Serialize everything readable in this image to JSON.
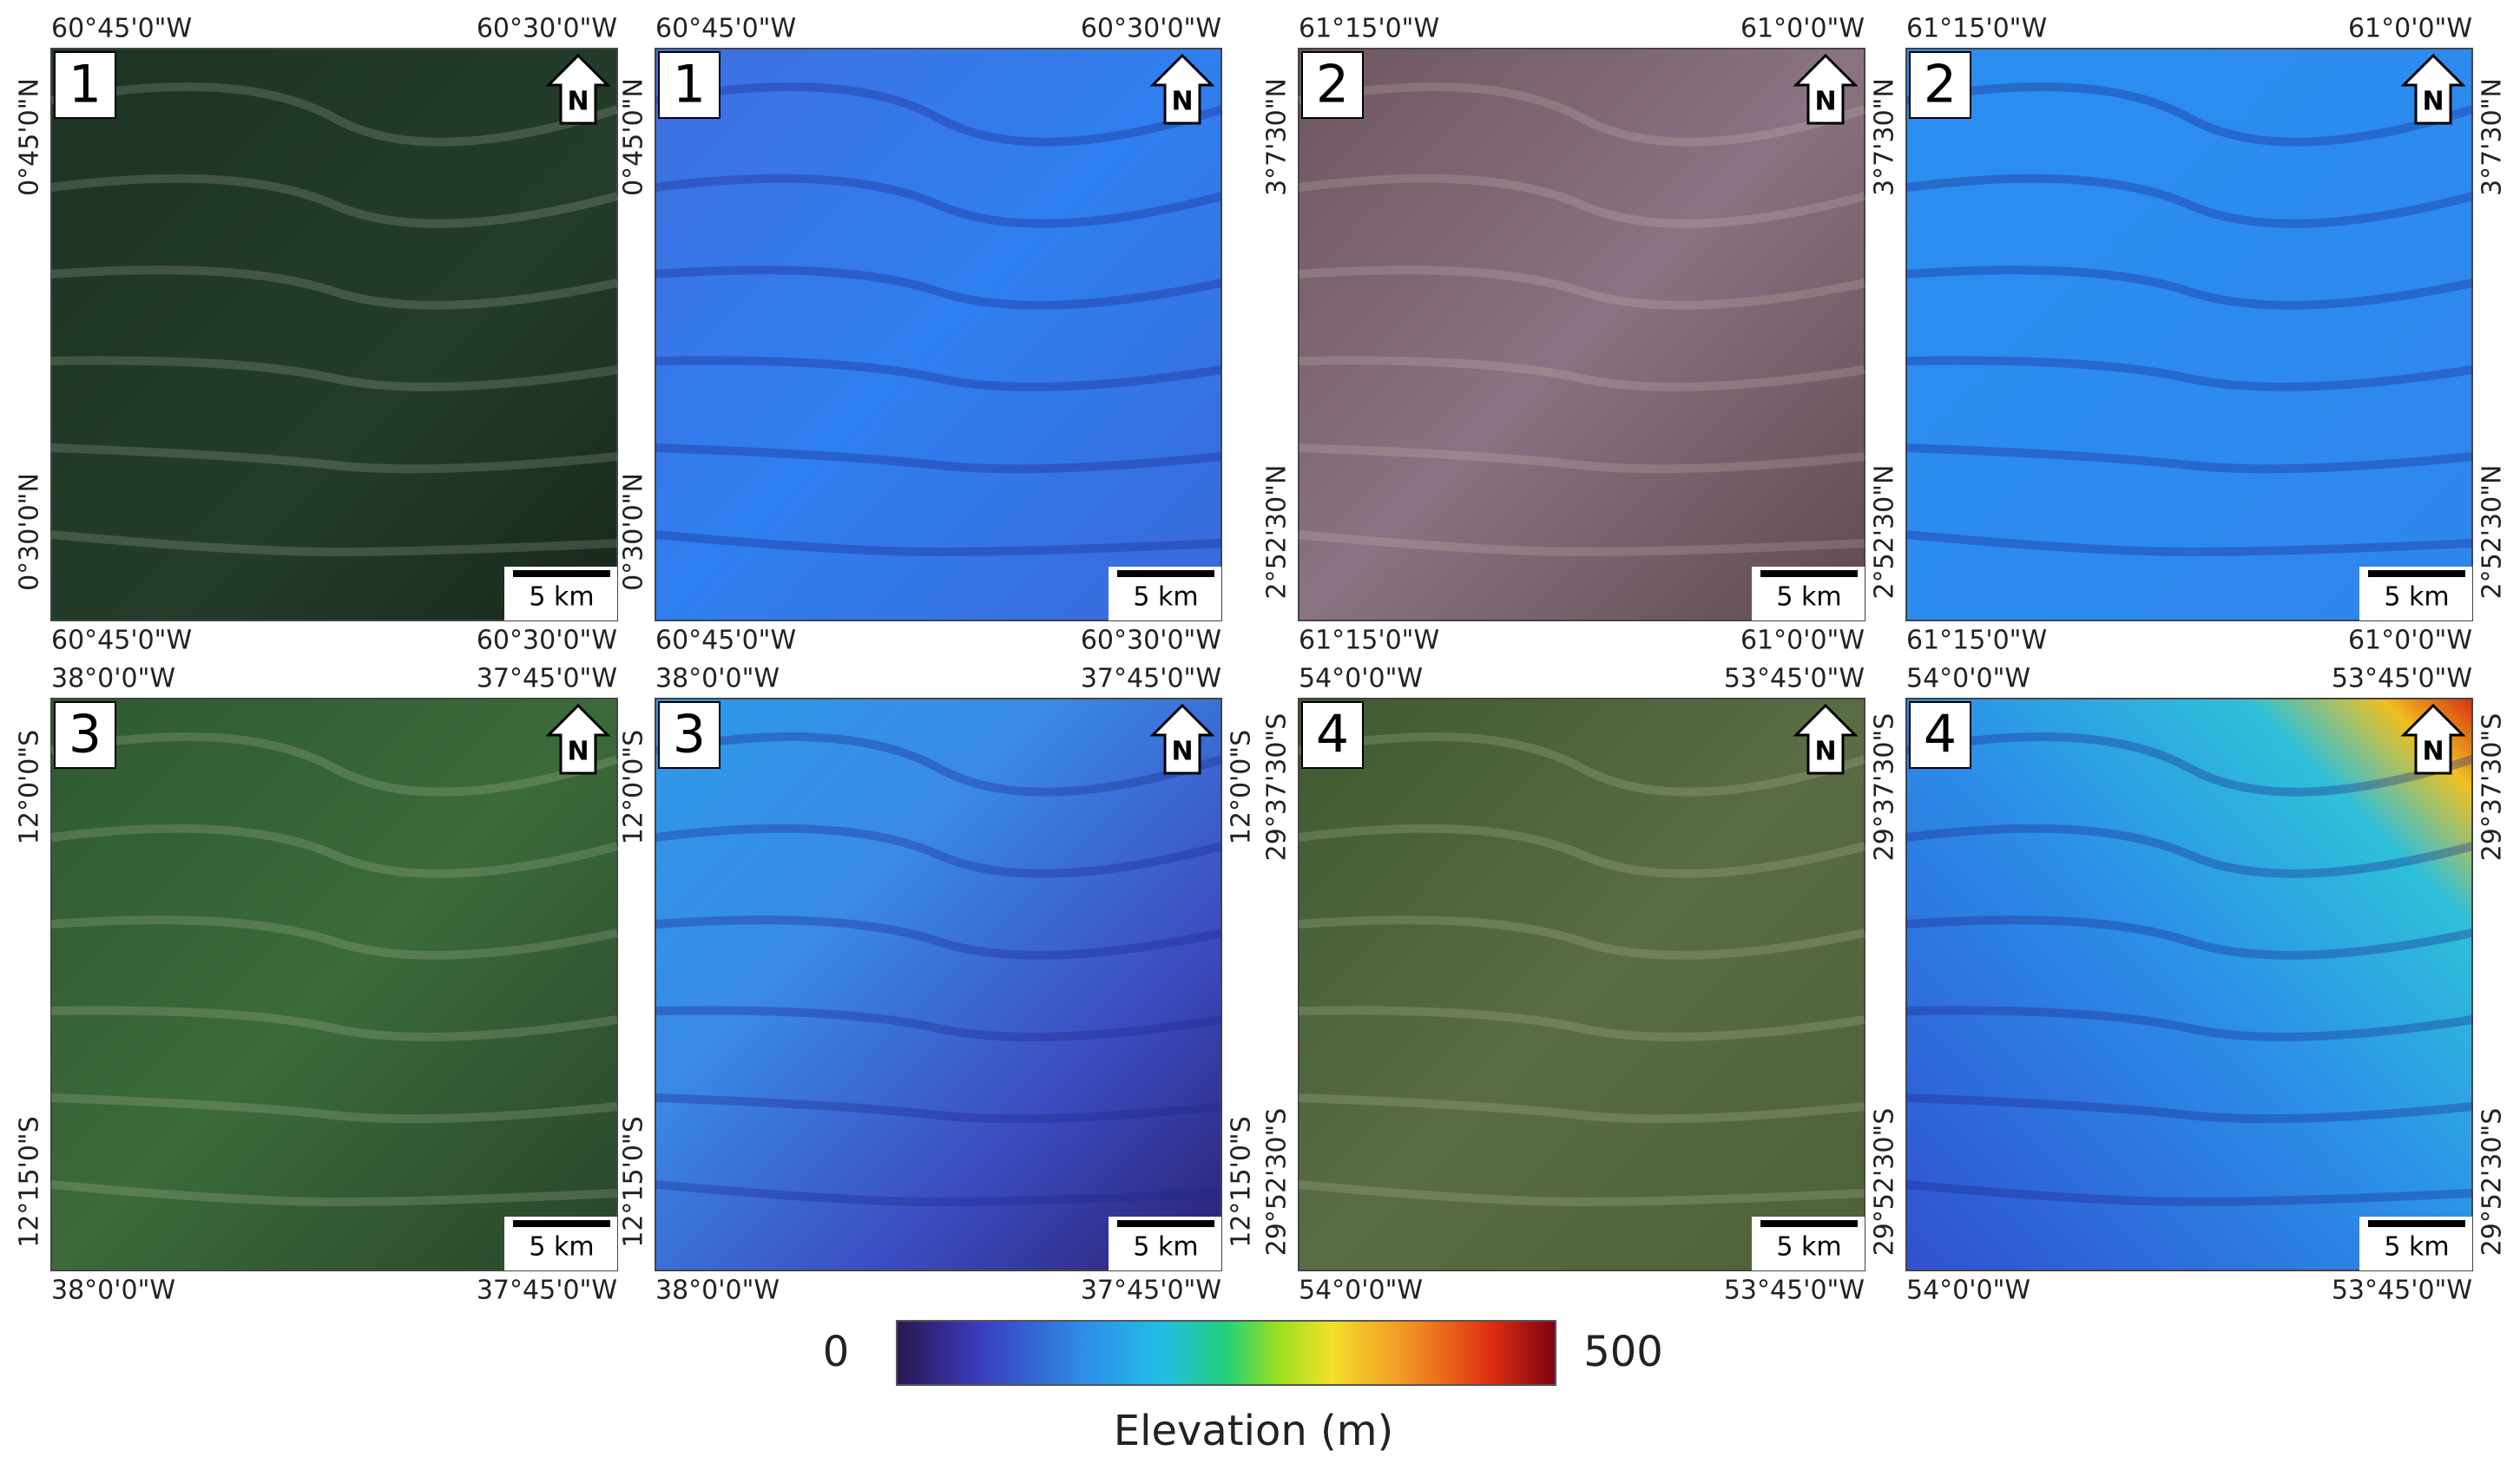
{
  "panels": [
    {
      "number": "1",
      "lon_top": [
        "60°45'0\"W",
        "60°30'0\"W"
      ],
      "lon_bottom": [
        "60°45'0\"W",
        "60°30'0\"W"
      ],
      "lat": [
        "0°45'0\"N",
        "0°30'0\"N"
      ],
      "north": "N",
      "scale": "5 km"
    },
    {
      "number": "1",
      "lon_top": [
        "60°45'0\"W",
        "60°30'0\"W"
      ],
      "lon_bottom": [
        "60°45'0\"W",
        "60°30'0\"W"
      ],
      "lat": [
        "0°45'0\"N",
        "0°30'0\"N"
      ],
      "north": "N",
      "scale": "5 km"
    },
    {
      "number": "2",
      "lon_top": [
        "61°15'0\"W",
        "61°0'0\"W"
      ],
      "lon_bottom": [
        "61°15'0\"W",
        "61°0'0\"W"
      ],
      "lat": [
        "3°7'30\"N",
        "2°52'30\"N"
      ],
      "north": "N",
      "scale": "5 km"
    },
    {
      "number": "2",
      "lon_top": [
        "61°15'0\"W",
        "61°0'0\"W"
      ],
      "lon_bottom": [
        "61°15'0\"W",
        "61°0'0\"W"
      ],
      "lat": [
        "3°7'30\"N",
        "2°52'30\"N"
      ],
      "lat_right": [
        "3°7'30\"N",
        "2°52'30\"N"
      ],
      "north": "N",
      "scale": "5 km"
    },
    {
      "number": "3",
      "lon_top": [
        "38°0'0\"W",
        "37°45'0\"W"
      ],
      "lon_bottom": [
        "38°0'0\"W",
        "37°45'0\"W"
      ],
      "lat": [
        "12°0'0\"S",
        "12°15'0\"S"
      ],
      "north": "N",
      "scale": "5 km"
    },
    {
      "number": "3",
      "lon_top": [
        "38°0'0\"W",
        "37°45'0\"W"
      ],
      "lon_bottom": [
        "38°0'0\"W",
        "37°45'0\"W"
      ],
      "lat": [
        "12°0'0\"S",
        "12°15'0\"S"
      ],
      "lat_right": [
        "12°0'0\"S",
        "12°15'0\"S"
      ],
      "north": "N",
      "scale": "5 km"
    },
    {
      "number": "4",
      "lon_top": [
        "54°0'0\"W",
        "53°45'0\"W"
      ],
      "lon_bottom": [
        "54°0'0\"W",
        "53°45'0\"W"
      ],
      "lat": [
        "29°37'30\"S",
        "29°52'30\"S"
      ],
      "north": "N",
      "scale": "5 km"
    },
    {
      "number": "4",
      "lon_top": [
        "54°0'0\"W",
        "53°45'0\"W"
      ],
      "lon_bottom": [
        "54°0'0\"W",
        "53°45'0\"W"
      ],
      "lat": [
        "29°37'30\"S",
        "29°52'30\"S"
      ],
      "lat_right": [
        "29°37'30\"S",
        "29°52'30\"S"
      ],
      "north": "N",
      "scale": "5 km"
    }
  ],
  "colorbar": {
    "min": 0,
    "max": 500,
    "label": "Elevation (m)"
  }
}
